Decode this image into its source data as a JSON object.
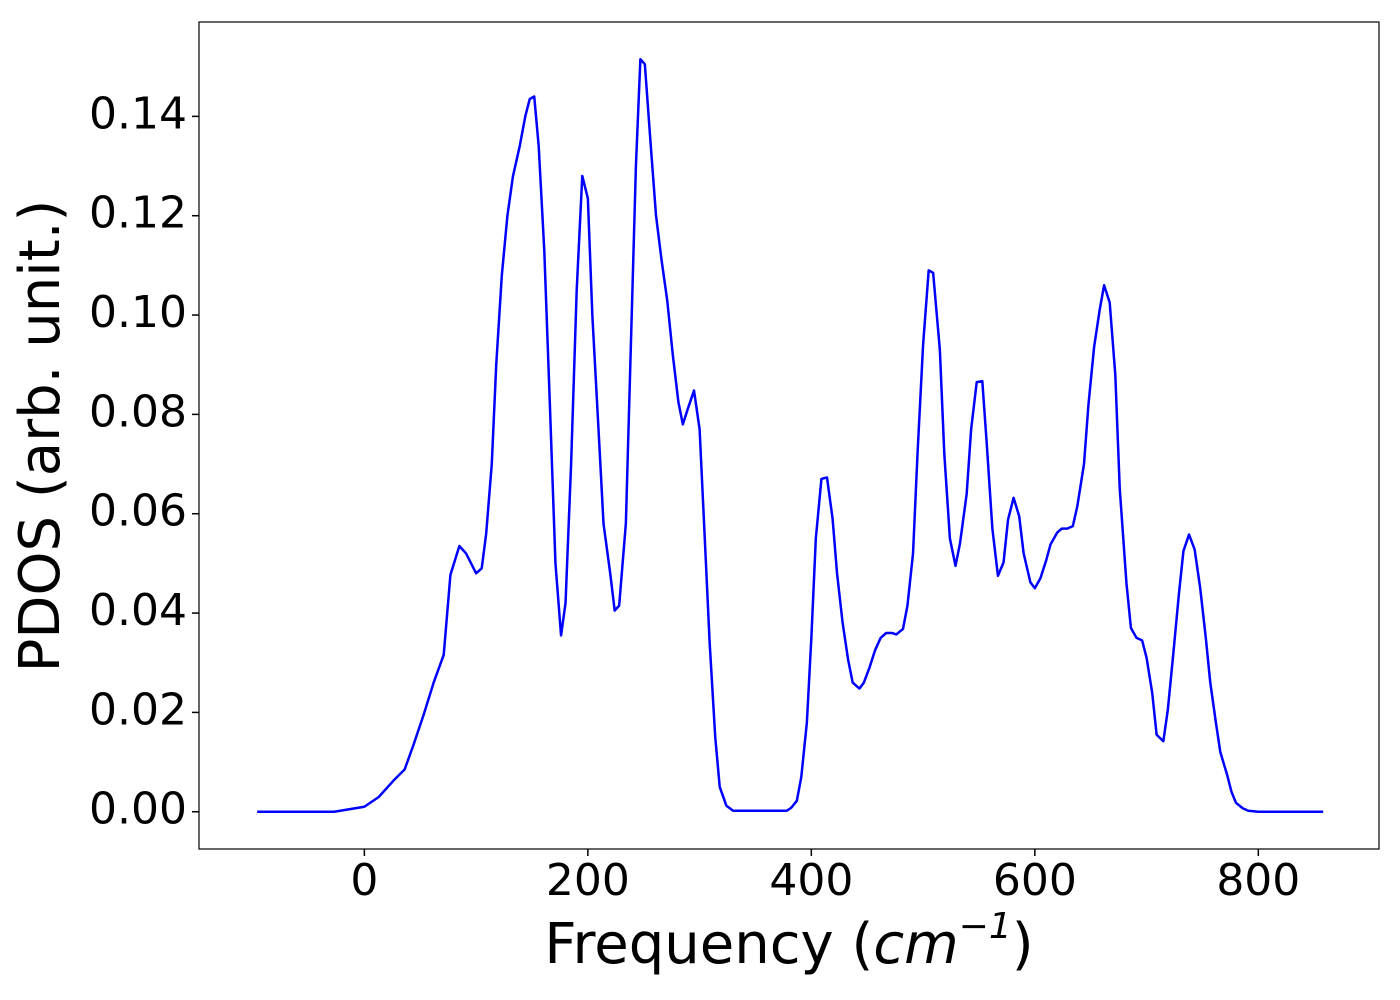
{
  "chart_data": {
    "type": "line",
    "color": "#0000ff",
    "xlabel": {
      "text": "Frequency (",
      "unit": "cm",
      "exponent": "−1",
      "close": ")"
    },
    "ylabel": "PDOS (arb. unit.)",
    "xlim": [
      -148,
      908
    ],
    "ylim": [
      -0.0075,
      0.159
    ],
    "xticks": [
      0,
      200,
      400,
      600,
      800
    ],
    "yticks": [
      {
        "value": 0,
        "label": "0.00"
      },
      {
        "value": 0.02,
        "label": "0.02"
      },
      {
        "value": 0.04,
        "label": "0.04"
      },
      {
        "value": 0.06,
        "label": "0.06"
      },
      {
        "value": 0.08,
        "label": "0.08"
      },
      {
        "value": 0.1,
        "label": "0.10"
      },
      {
        "value": 0.12,
        "label": "0.12"
      },
      {
        "value": 0.14,
        "label": "0.14"
      }
    ],
    "x": [
      -96,
      -27,
      0,
      13,
      27,
      36,
      44,
      53,
      62,
      71,
      77,
      85,
      91,
      100,
      105,
      109,
      114,
      118,
      123,
      128,
      133,
      139,
      144,
      148,
      152,
      156,
      161,
      166,
      171,
      176,
      180,
      185,
      190,
      195,
      200,
      204,
      210,
      214,
      220,
      224,
      228,
      234,
      238,
      243,
      247,
      251,
      256,
      261,
      266,
      271,
      276,
      281,
      285,
      290,
      295,
      300,
      304,
      309,
      314,
      318,
      324,
      330,
      378,
      382,
      387,
      391,
      396,
      400,
      404,
      409,
      414,
      419,
      423,
      428,
      433,
      437,
      443,
      447,
      452,
      457,
      462,
      467,
      472,
      476,
      482,
      486,
      491,
      495,
      500,
      505,
      509,
      515,
      519,
      524,
      529,
      533,
      539,
      543,
      548,
      553,
      557,
      562,
      567,
      572,
      576,
      581,
      586,
      590,
      596,
      600,
      605,
      610,
      614,
      620,
      624,
      629,
      634,
      638,
      644,
      648,
      653,
      658,
      662,
      667,
      672,
      676,
      682,
      686,
      691,
      696,
      700,
      705,
      709,
      715,
      719,
      724,
      729,
      733,
      738,
      743,
      748,
      753,
      757,
      762,
      766,
      772,
      776,
      780,
      786,
      791,
      800,
      858
    ],
    "values": [
      0,
      0,
      0.001,
      0.003,
      0.0065,
      0.0085,
      0.0135,
      0.0195,
      0.026,
      0.0316,
      0.0477,
      0.0535,
      0.052,
      0.048,
      0.049,
      0.056,
      0.07,
      0.09,
      0.108,
      0.12,
      0.128,
      0.134,
      0.14,
      0.1435,
      0.144,
      0.134,
      0.113,
      0.082,
      0.05,
      0.0355,
      0.042,
      0.07,
      0.105,
      0.128,
      0.1235,
      0.1,
      0.075,
      0.058,
      0.048,
      0.0405,
      0.0415,
      0.058,
      0.09,
      0.13,
      0.1515,
      0.1505,
      0.135,
      0.12,
      0.111,
      0.103,
      0.092,
      0.0825,
      0.078,
      0.0815,
      0.0848,
      0.077,
      0.058,
      0.034,
      0.015,
      0.005,
      0.0012,
      0.0002,
      0.0002,
      0.0008,
      0.0022,
      0.007,
      0.018,
      0.035,
      0.055,
      0.067,
      0.0673,
      0.059,
      0.048,
      0.038,
      0.0305,
      0.026,
      0.0248,
      0.026,
      0.029,
      0.0325,
      0.035,
      0.036,
      0.036,
      0.0357,
      0.0368,
      0.0415,
      0.052,
      0.072,
      0.094,
      0.109,
      0.1085,
      0.093,
      0.072,
      0.055,
      0.0495,
      0.054,
      0.064,
      0.077,
      0.0865,
      0.0867,
      0.074,
      0.057,
      0.0475,
      0.0502,
      0.0588,
      0.0632,
      0.0595,
      0.052,
      0.0462,
      0.045,
      0.047,
      0.0505,
      0.0538,
      0.0562,
      0.057,
      0.057,
      0.0575,
      0.0615,
      0.07,
      0.082,
      0.0935,
      0.101,
      0.106,
      0.1025,
      0.088,
      0.065,
      0.046,
      0.037,
      0.035,
      0.0345,
      0.031,
      0.024,
      0.0155,
      0.0142,
      0.0205,
      0.032,
      0.044,
      0.0525,
      0.0558,
      0.0528,
      0.045,
      0.035,
      0.026,
      0.018,
      0.012,
      0.0075,
      0.004,
      0.0018,
      0.0007,
      0.0002,
      0,
      0
    ]
  }
}
